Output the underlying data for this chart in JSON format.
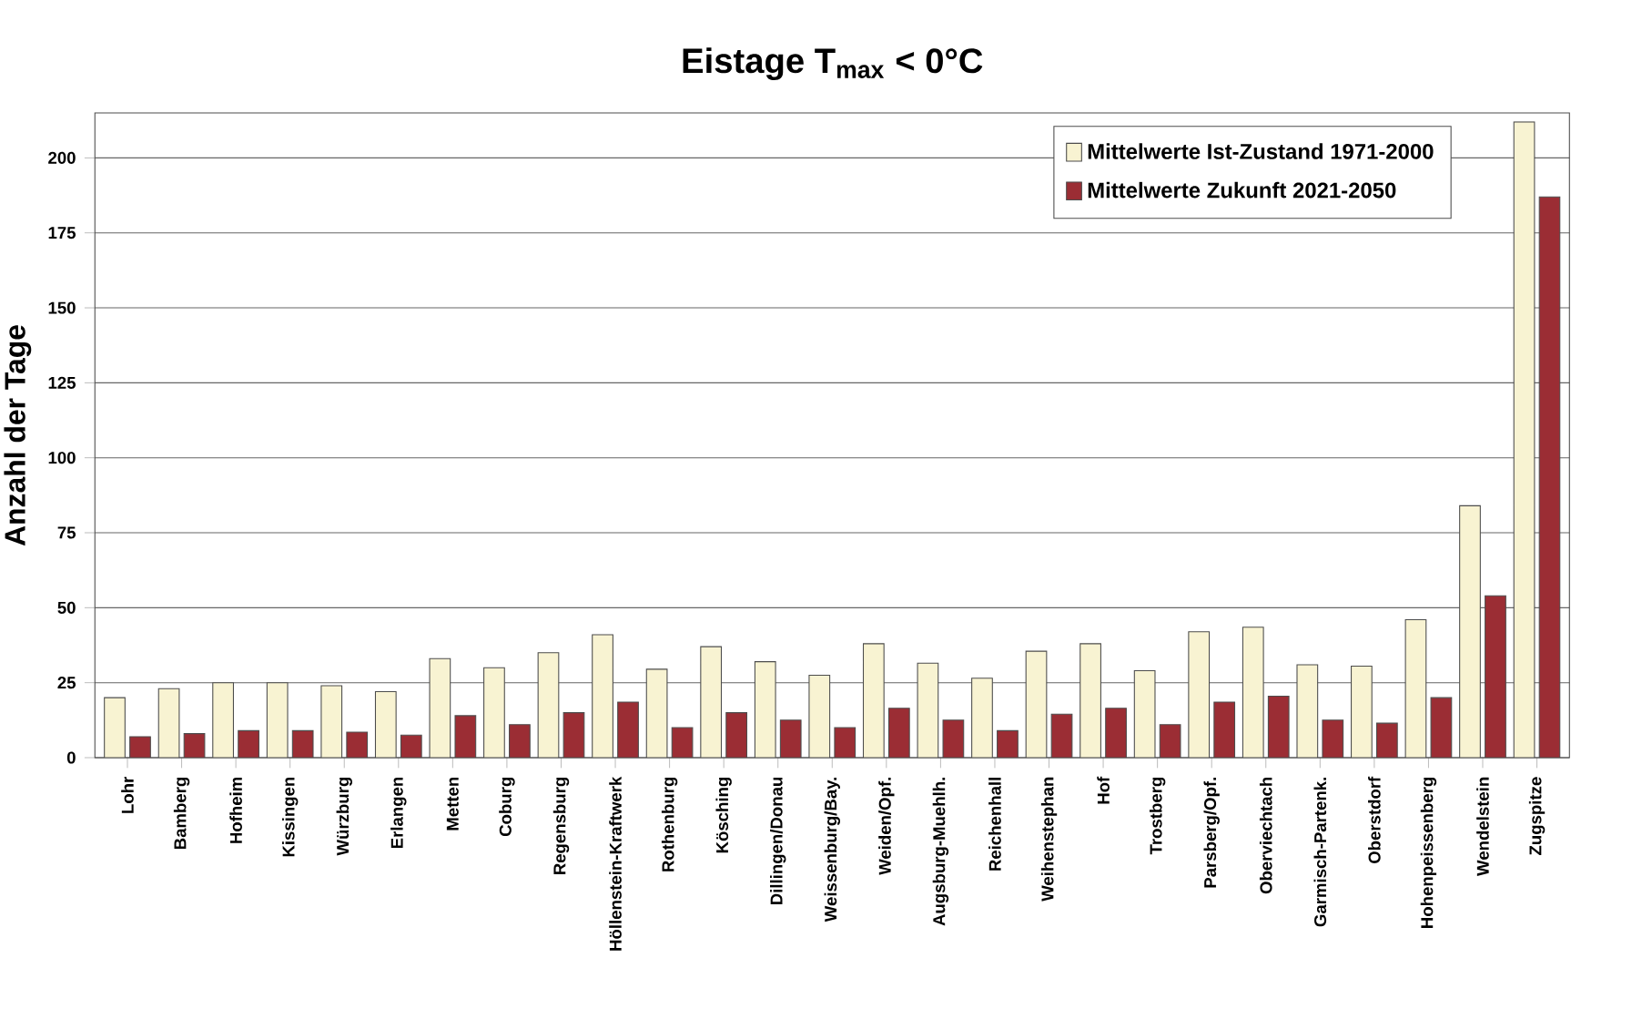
{
  "chart_data": {
    "type": "bar",
    "title": "Eistage T$_{max}$ < 0°C",
    "ylabel": "Anzahl der Tage",
    "categories": [
      "Lohr",
      "Bamberg",
      "Hofheim",
      "Kissingen",
      "Würzburg",
      "Erlangen",
      "Metten",
      "Coburg",
      "Regensburg",
      "Höllenstein-Kraftwerk",
      "Rothenburg",
      "Kösching",
      "Dillingen/Donau",
      "Weissenburg/Bay.",
      "Weiden/Opf.",
      "Augsburg-Muehlh.",
      "Reichenhall",
      "Weihenstephan",
      "Hof",
      "Trostberg",
      "Parsberg/Opf.",
      "Oberviechtach",
      "Garmisch-Partenk.",
      "Oberstdorf",
      "Hohenpeissenberg",
      "Wendelstein",
      "Zugspitze"
    ],
    "series": [
      {
        "name": "Mittelwerte Ist-Zustand 1971-2000",
        "color": "#f8f3d2",
        "values": [
          20,
          23,
          25,
          25,
          24,
          22,
          33,
          30,
          35,
          41,
          29.5,
          37,
          32,
          27.5,
          38,
          31.5,
          26.5,
          35.5,
          38,
          29,
          42,
          43.5,
          31,
          30.5,
          46,
          84,
          212
        ]
      },
      {
        "name": "Mittelwerte Zukunft 2021-2050",
        "color": "#9b2d34",
        "values": [
          7,
          8,
          9,
          9,
          8.5,
          7.5,
          14,
          11,
          15,
          18.5,
          10,
          15,
          12.5,
          10,
          16.5,
          12.5,
          9,
          14.5,
          16.5,
          11,
          18.5,
          20.5,
          12.5,
          11.5,
          20,
          54,
          187
        ]
      }
    ],
    "ylim": [
      0,
      215
    ],
    "yticks": [
      0,
      25,
      50,
      75,
      100,
      125,
      150,
      175,
      200
    ],
    "grid": "y",
    "legend": "top right"
  }
}
